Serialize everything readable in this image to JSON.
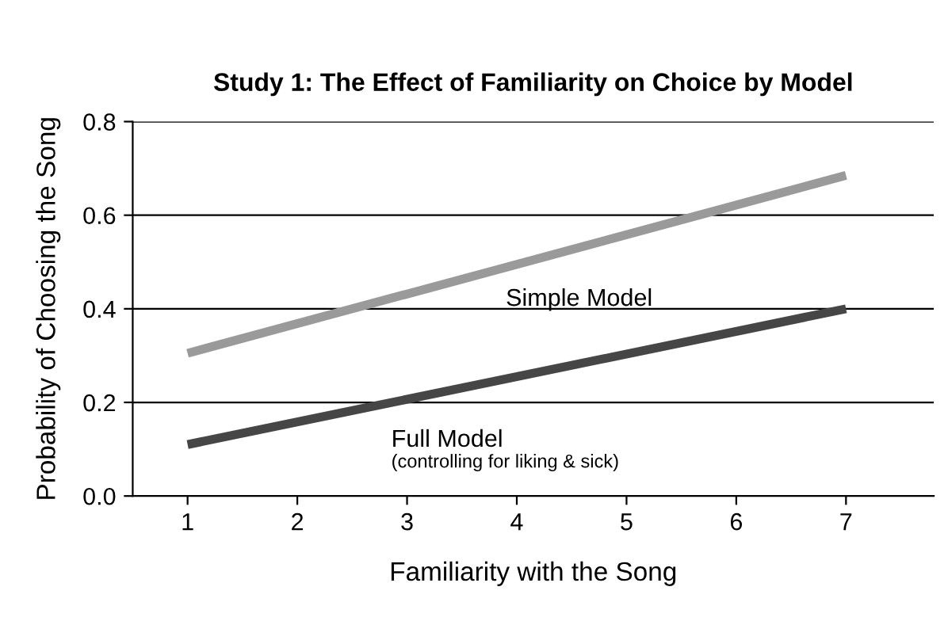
{
  "chart_data": {
    "type": "line",
    "title": "Study 1: The Effect of Familiarity on Choice by Model",
    "xlabel": "Familiarity with the Song",
    "ylabel": "Probability of Choosing the Song",
    "x": [
      1,
      7
    ],
    "series": [
      {
        "name": "Simple Model",
        "color": "#9a9a9a",
        "values": [
          0.305,
          0.685
        ]
      },
      {
        "name": "Full Model",
        "color": "#464646",
        "values": [
          0.11,
          0.4
        ]
      }
    ],
    "annotations": [
      "(controlling for liking & sick)"
    ],
    "xlim": [
      0.5,
      7.8
    ],
    "xticks": [
      1,
      2,
      3,
      4,
      5,
      6,
      7
    ],
    "ylim": [
      0,
      0.8
    ],
    "yticks": [
      {
        "value": 0,
        "label": "0.0"
      },
      {
        "value": 0.2,
        "label": "0.2"
      },
      {
        "value": 0.4,
        "label": "0.4"
      },
      {
        "value": 0.6,
        "label": "0.6"
      },
      {
        "value": 0.8,
        "label": "0.8"
      }
    ],
    "grid": "y",
    "marker": "none",
    "line_style": "solid"
  }
}
